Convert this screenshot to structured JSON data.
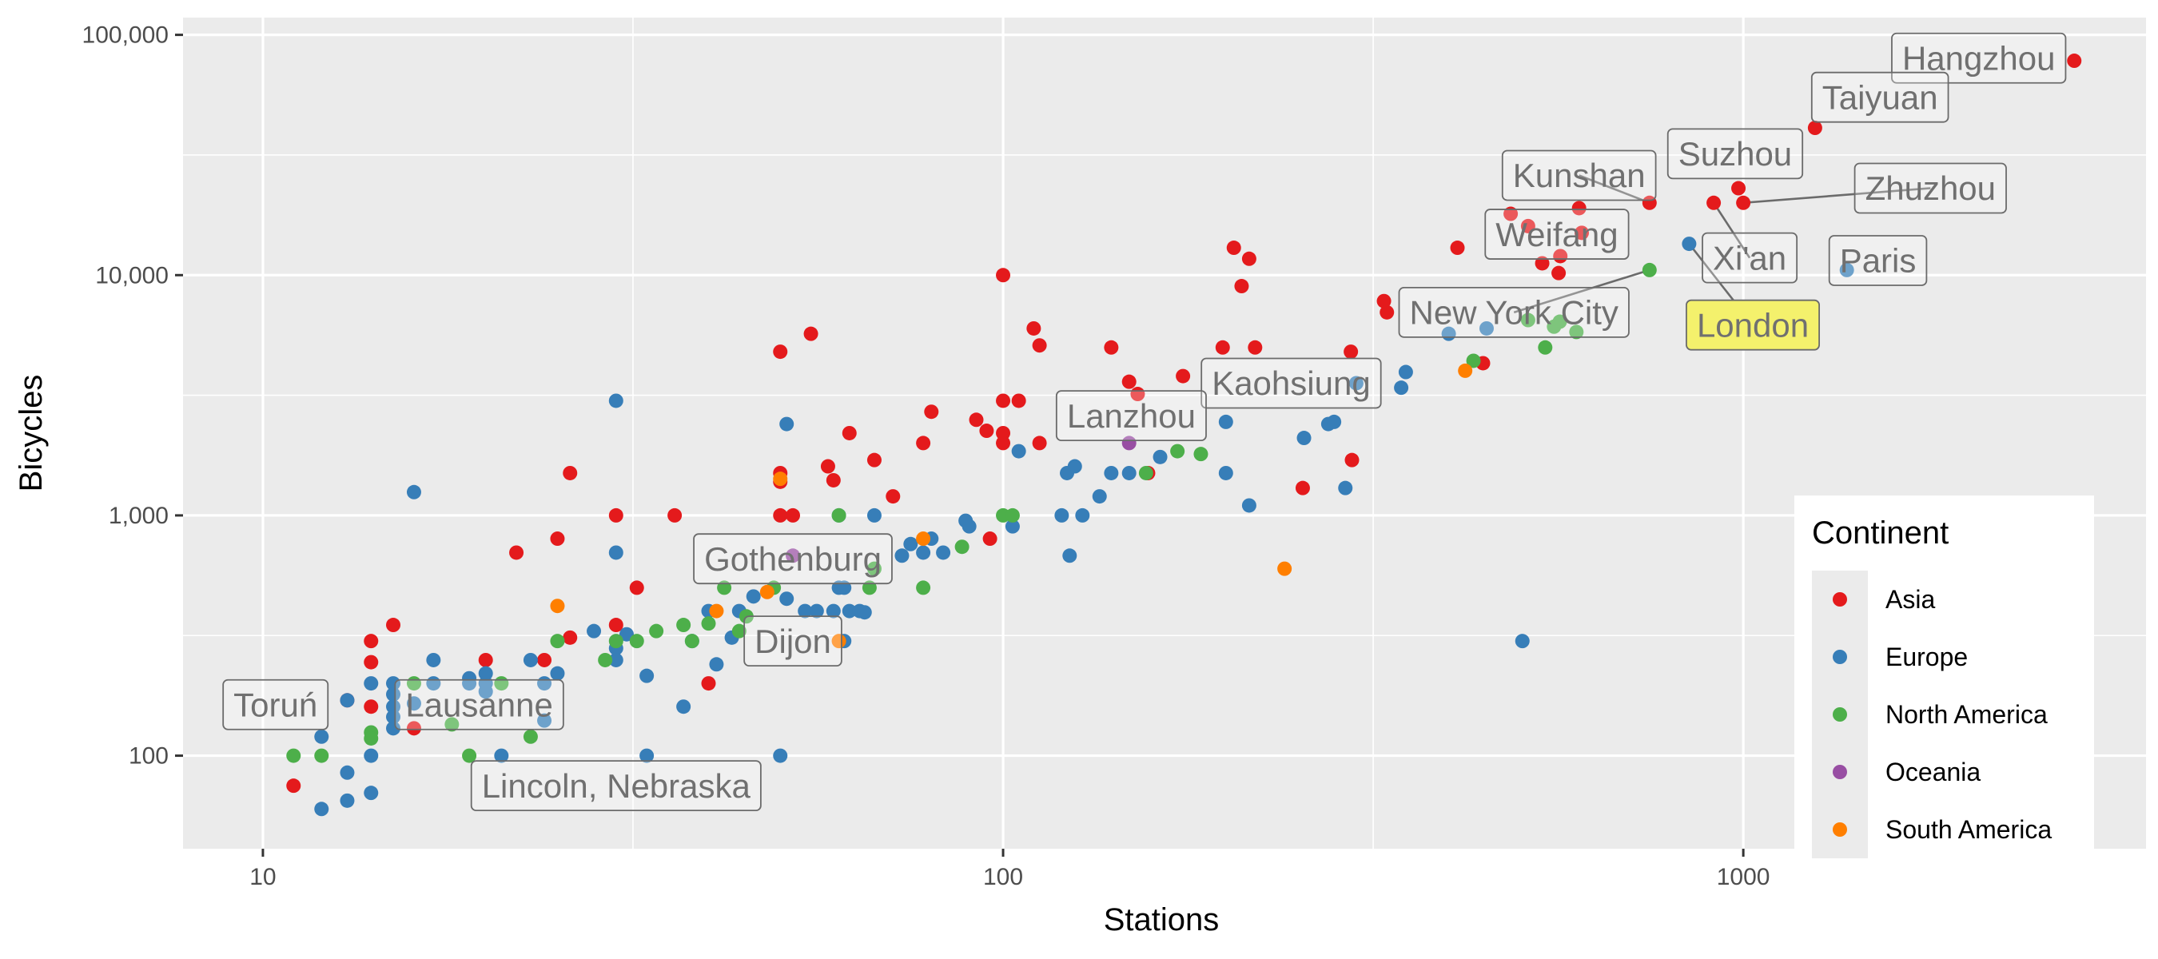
{
  "chart_data": {
    "type": "scatter",
    "xlabel": "Stations",
    "ylabel": "Bicycles",
    "xscale": "log10",
    "yscale": "log10",
    "xlim": [
      7.8,
      3500
    ],
    "ylim": [
      41,
      118000
    ],
    "x_ticks": [
      10,
      100,
      1000
    ],
    "x_tick_labels": [
      "10",
      "100",
      "1000"
    ],
    "y_ticks": [
      100,
      1000,
      10000,
      100000
    ],
    "y_tick_labels": [
      "100",
      "1,000",
      "10,000",
      "100,000"
    ],
    "grid": true,
    "legend": {
      "title": "Continent",
      "position": "right",
      "entries": [
        {
          "name": "Asia",
          "color": "#E41A1C"
        },
        {
          "name": "Europe",
          "color": "#377EB8"
        },
        {
          "name": "North America",
          "color": "#4DAF4A"
        },
        {
          "name": "Oceania",
          "color": "#984EA3"
        },
        {
          "name": "South America",
          "color": "#FF7F00"
        }
      ]
    },
    "colors": {
      "Asia": "#E41A1C",
      "Europe": "#377EB8",
      "North America": "#4DAF4A",
      "Oceania": "#984EA3",
      "South America": "#FF7F00"
    },
    "series": [
      {
        "name": "Asia",
        "points": [
          [
            11,
            75
          ],
          [
            13,
            170
          ],
          [
            14,
            300
          ],
          [
            14,
            245
          ],
          [
            14,
            160
          ],
          [
            15,
            350
          ],
          [
            16,
            130
          ],
          [
            20,
            250
          ],
          [
            22,
            700
          ],
          [
            24,
            250
          ],
          [
            25,
            800
          ],
          [
            26,
            310
          ],
          [
            26,
            1500
          ],
          [
            30,
            1000
          ],
          [
            30,
            350
          ],
          [
            32,
            500
          ],
          [
            36,
            1000
          ],
          [
            40,
            200
          ],
          [
            50,
            4800
          ],
          [
            50,
            1500
          ],
          [
            50,
            1380
          ],
          [
            50,
            1000
          ],
          [
            52,
            1000
          ],
          [
            55,
            5700
          ],
          [
            58,
            1600
          ],
          [
            59,
            1400
          ],
          [
            62,
            2200
          ],
          [
            67,
            1700
          ],
          [
            71,
            1200
          ],
          [
            78,
            2000
          ],
          [
            80,
            2700
          ],
          [
            92,
            2500
          ],
          [
            95,
            2250
          ],
          [
            96,
            800
          ],
          [
            100,
            10000
          ],
          [
            100,
            3000
          ],
          [
            100,
            2200
          ],
          [
            100,
            2000
          ],
          [
            105,
            3000
          ],
          [
            110,
            6000
          ],
          [
            112,
            5100
          ],
          [
            112,
            2000
          ],
          [
            140,
            5000
          ],
          [
            148,
            3600
          ],
          [
            152,
            3200
          ],
          [
            157,
            1500
          ],
          [
            175,
            3800
          ],
          [
            198,
            5000
          ],
          [
            205,
            13000
          ],
          [
            210,
            9000
          ],
          [
            215,
            11700
          ],
          [
            219,
            5000
          ],
          [
            254,
            1300
          ],
          [
            295,
            4800
          ],
          [
            296,
            1700
          ],
          [
            327,
            7800
          ],
          [
            330,
            7000
          ],
          [
            411,
            13000
          ],
          [
            445,
            4300
          ],
          [
            485,
            18000
          ],
          [
            512,
            16000
          ],
          [
            535,
            11200
          ],
          [
            563,
            10200
          ],
          [
            566,
            12000
          ],
          [
            600,
            19000
          ],
          [
            605,
            15000
          ],
          [
            747,
            20000
          ],
          [
            912,
            20000
          ],
          [
            985,
            23000
          ],
          [
            1000,
            20000
          ],
          [
            1250,
            41000
          ],
          [
            2800,
            78000
          ]
        ]
      },
      {
        "name": "Europe",
        "points": [
          [
            12,
            60
          ],
          [
            12,
            120
          ],
          [
            13,
            85
          ],
          [
            13,
            65
          ],
          [
            13,
            170
          ],
          [
            14,
            70
          ],
          [
            14,
            100
          ],
          [
            14,
            200
          ],
          [
            15,
            200
          ],
          [
            15,
            180
          ],
          [
            15,
            160
          ],
          [
            15,
            145
          ],
          [
            15,
            130
          ],
          [
            16,
            1250
          ],
          [
            16,
            165
          ],
          [
            17,
            250
          ],
          [
            17,
            200
          ],
          [
            19,
            200
          ],
          [
            19,
            210
          ],
          [
            20,
            200
          ],
          [
            20,
            220
          ],
          [
            20,
            185
          ],
          [
            21,
            100
          ],
          [
            23,
            250
          ],
          [
            24,
            140
          ],
          [
            24,
            200
          ],
          [
            25,
            220
          ],
          [
            28,
            330
          ],
          [
            30,
            3000
          ],
          [
            30,
            700
          ],
          [
            30,
            280
          ],
          [
            30,
            250
          ],
          [
            31,
            320
          ],
          [
            33,
            100
          ],
          [
            33,
            215
          ],
          [
            37,
            160
          ],
          [
            38,
            300
          ],
          [
            40,
            400
          ],
          [
            41,
            240
          ],
          [
            43,
            310
          ],
          [
            44,
            400
          ],
          [
            46,
            460
          ],
          [
            50,
            100
          ],
          [
            51,
            2400
          ],
          [
            51,
            450
          ],
          [
            54,
            400
          ],
          [
            56,
            400
          ],
          [
            59,
            400
          ],
          [
            60,
            500
          ],
          [
            60,
            1000
          ],
          [
            61,
            500
          ],
          [
            61,
            300
          ],
          [
            62,
            400
          ],
          [
            64,
            400
          ],
          [
            65,
            395
          ],
          [
            67,
            1000
          ],
          [
            73,
            680
          ],
          [
            75,
            760
          ],
          [
            78,
            700
          ],
          [
            80,
            800
          ],
          [
            83,
            700
          ],
          [
            89,
            950
          ],
          [
            90,
            900
          ],
          [
            103,
            900
          ],
          [
            105,
            1850
          ],
          [
            120,
            1000
          ],
          [
            122,
            1500
          ],
          [
            123,
            680
          ],
          [
            125,
            1600
          ],
          [
            128,
            1000
          ],
          [
            135,
            1200
          ],
          [
            140,
            1500
          ],
          [
            148,
            1500
          ],
          [
            163,
            1750
          ],
          [
            200,
            2450
          ],
          [
            200,
            1500
          ],
          [
            215,
            1100
          ],
          [
            255,
            2100
          ],
          [
            275,
            2400
          ],
          [
            280,
            2450
          ],
          [
            290,
            1300
          ],
          [
            300,
            3550
          ],
          [
            345,
            3400
          ],
          [
            350,
            3950
          ],
          [
            400,
            5700
          ],
          [
            450,
            6000
          ],
          [
            503,
            300
          ],
          [
            845,
            13500
          ],
          [
            1380,
            10500
          ]
        ]
      },
      {
        "name": "North America",
        "points": [
          [
            11,
            100
          ],
          [
            12,
            100
          ],
          [
            14,
            125
          ],
          [
            14,
            118
          ],
          [
            16,
            200
          ],
          [
            18,
            135
          ],
          [
            19,
            100
          ],
          [
            21,
            200
          ],
          [
            23,
            120
          ],
          [
            25,
            300
          ],
          [
            29,
            250
          ],
          [
            30,
            300
          ],
          [
            32,
            300
          ],
          [
            34,
            330
          ],
          [
            37,
            350
          ],
          [
            38,
            300
          ],
          [
            40,
            355
          ],
          [
            42,
            500
          ],
          [
            44,
            330
          ],
          [
            45,
            380
          ],
          [
            49,
            500
          ],
          [
            60,
            1000
          ],
          [
            66,
            500
          ],
          [
            67,
            600
          ],
          [
            78,
            500
          ],
          [
            88,
            740
          ],
          [
            100,
            1000
          ],
          [
            103,
            1000
          ],
          [
            156,
            1500
          ],
          [
            172,
            1850
          ],
          [
            185,
            1800
          ],
          [
            432,
            4400
          ],
          [
            512,
            6500
          ],
          [
            540,
            5000
          ],
          [
            555,
            6100
          ],
          [
            565,
            6400
          ],
          [
            595,
            5800
          ],
          [
            747,
            10500
          ]
        ]
      },
      {
        "name": "Oceania",
        "points": [
          [
            52,
            680
          ],
          [
            148,
            2000
          ]
        ]
      },
      {
        "name": "South America",
        "points": [
          [
            25,
            420
          ],
          [
            41,
            400
          ],
          [
            48,
            480
          ],
          [
            50,
            1420
          ],
          [
            60,
            300
          ],
          [
            78,
            800
          ],
          [
            240,
            600
          ],
          [
            421,
            4000
          ]
        ]
      }
    ],
    "annotations": [
      {
        "text": "Hangzhou",
        "x": 2800,
        "y": 78000,
        "lx": 2080,
        "ly": 80000,
        "highlight": false
      },
      {
        "text": "Taiyuan",
        "x": 1250,
        "y": 41000,
        "lx": 1530,
        "ly": 55000,
        "highlight": false
      },
      {
        "text": "Suzhou",
        "x": 1000,
        "y": 20000,
        "lx": 975,
        "ly": 32000,
        "highlight": false
      },
      {
        "text": "Kunshan",
        "x": 747,
        "y": 20000,
        "lx": 600,
        "ly": 26000,
        "highlight": false
      },
      {
        "text": "Zhuzhou",
        "x": 1000,
        "y": 20000,
        "lx": 1790,
        "ly": 23000,
        "highlight": false
      },
      {
        "text": "Weifang",
        "x": 600,
        "y": 15000,
        "lx": 560,
        "ly": 14800,
        "highlight": false
      },
      {
        "text": "Xi'an",
        "x": 912,
        "y": 20000,
        "lx": 1020,
        "ly": 11800,
        "highlight": false
      },
      {
        "text": "Paris",
        "x": 1380,
        "y": 10500,
        "lx": 1520,
        "ly": 11500,
        "highlight": false
      },
      {
        "text": "New York City",
        "x": 747,
        "y": 10500,
        "lx": 490,
        "ly": 7000,
        "highlight": false
      },
      {
        "text": "London",
        "x": 845,
        "y": 13500,
        "lx": 1030,
        "ly": 6200,
        "highlight": true
      },
      {
        "text": "Kaohsiung",
        "x": 175,
        "y": 3800,
        "lx": 245,
        "ly": 3550,
        "highlight": false
      },
      {
        "text": "Lanzhou",
        "x": 112,
        "y": 2000,
        "lx": 149,
        "ly": 2600,
        "highlight": false
      },
      {
        "text": "Gothenburg",
        "x": 52,
        "y": 680,
        "lx": 52,
        "ly": 660,
        "highlight": false
      },
      {
        "text": "Dijon",
        "x": 43,
        "y": 310,
        "lx": 52,
        "ly": 300,
        "highlight": false
      },
      {
        "text": "Toruń",
        "x": 13,
        "y": 170,
        "lx": 10.4,
        "ly": 163,
        "highlight": false
      },
      {
        "text": "Lausanne",
        "x": 15,
        "y": 160,
        "lx": 19.6,
        "ly": 163,
        "highlight": false
      },
      {
        "text": "Lincoln, Nebraska",
        "x": 15,
        "y": 130,
        "lx": 30,
        "ly": 75,
        "highlight": false
      }
    ]
  }
}
